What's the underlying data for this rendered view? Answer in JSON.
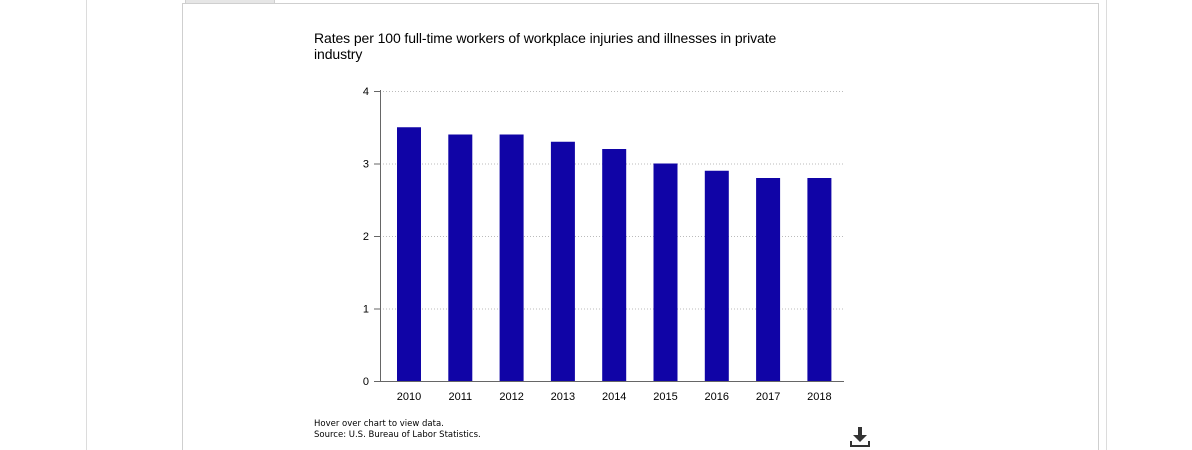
{
  "chart_data": {
    "type": "bar",
    "title": "Rates per 100 full-time workers of workplace injuries and illnesses in private industry",
    "categories": [
      "2010",
      "2011",
      "2012",
      "2013",
      "2014",
      "2015",
      "2016",
      "2017",
      "2018"
    ],
    "values": [
      3.5,
      3.4,
      3.4,
      3.3,
      3.2,
      3.0,
      2.9,
      2.8,
      2.8
    ],
    "ylim": [
      0,
      4
    ],
    "yticks": [
      "0",
      "1",
      "2",
      "3",
      "4"
    ],
    "xlabel": "",
    "ylabel": "",
    "grid": true,
    "legend": "none",
    "bar_color": "#1004a6"
  },
  "footnotes": {
    "hover_hint": "Hover over chart to view data.",
    "source": "Source: U.S. Bureau of Labor Statistics."
  },
  "toolbar": {
    "download_icon": "download-icon"
  }
}
